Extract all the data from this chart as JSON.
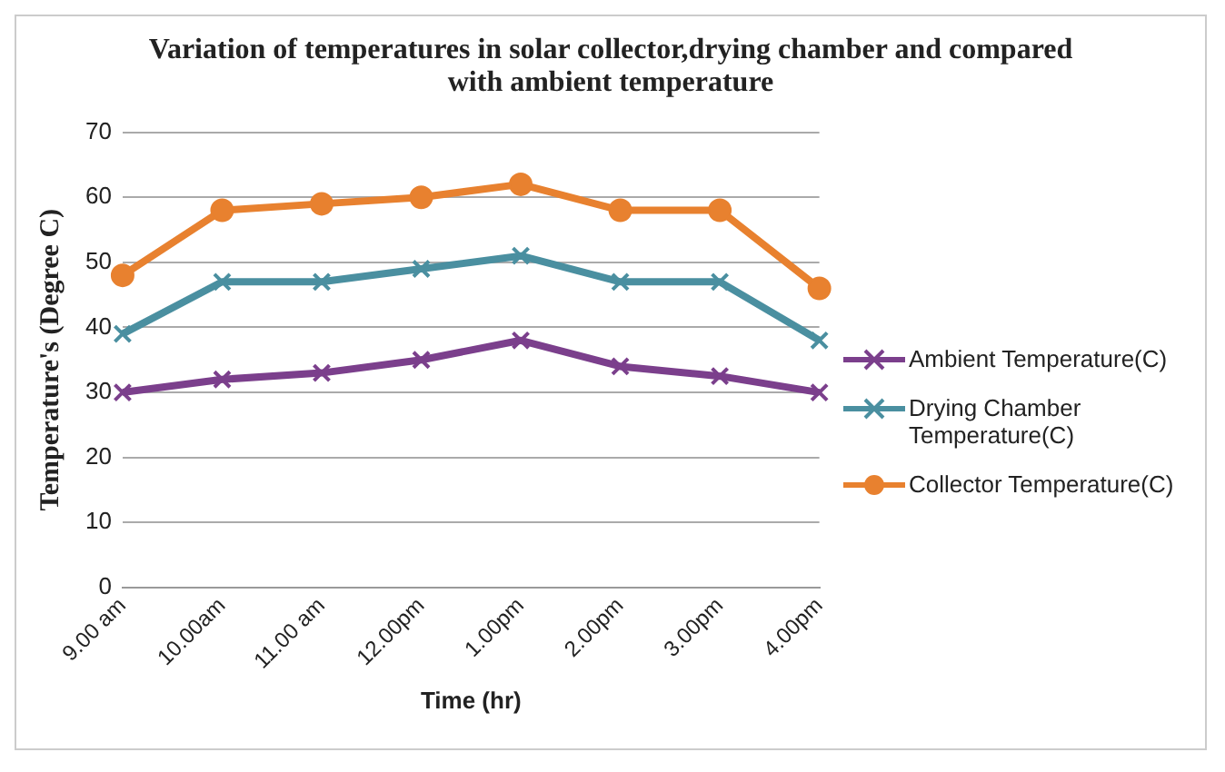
{
  "chart_data": {
    "type": "line",
    "title": "Variation of temperatures in solar collector,drying chamber and compared with ambient  temperature",
    "xlabel": "Time (hr)",
    "ylabel": "Temperature's (Degree C)",
    "categories": [
      "9.00 am",
      "10.00am",
      "11.00 am",
      "12.00pm",
      "1.00pm",
      "2.00pm",
      "3.00pm",
      "4.00pm"
    ],
    "series": [
      {
        "name": "Ambient Temperature(C)",
        "color": "#7b3f8c",
        "marker": "cross",
        "values": [
          30,
          32,
          33,
          35,
          38,
          34,
          32.5,
          30
        ]
      },
      {
        "name": "Drying Chamber Temperature(C)",
        "color": "#4a8fa0",
        "marker": "cross",
        "values": [
          39,
          47,
          47,
          49,
          51,
          47,
          47,
          38
        ]
      },
      {
        "name": "Collector Temperature(C)",
        "color": "#e8812f",
        "marker": "circle",
        "values": [
          48,
          58,
          59,
          60,
          62,
          58,
          58,
          46
        ]
      }
    ],
    "ylim": [
      0,
      70
    ],
    "yticks": [
      0,
      10,
      20,
      30,
      40,
      50,
      60,
      70
    ],
    "grid": "y",
    "legend": "right"
  }
}
